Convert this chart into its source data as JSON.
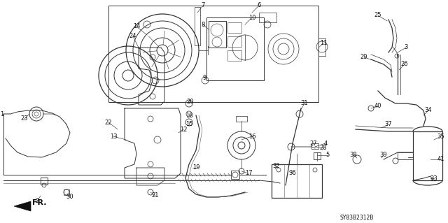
{
  "bg_color": "#ffffff",
  "diagram_code": "SY83B2312B",
  "line_color": "#333333",
  "label_color": "#111111",
  "label_fs": 6.0
}
